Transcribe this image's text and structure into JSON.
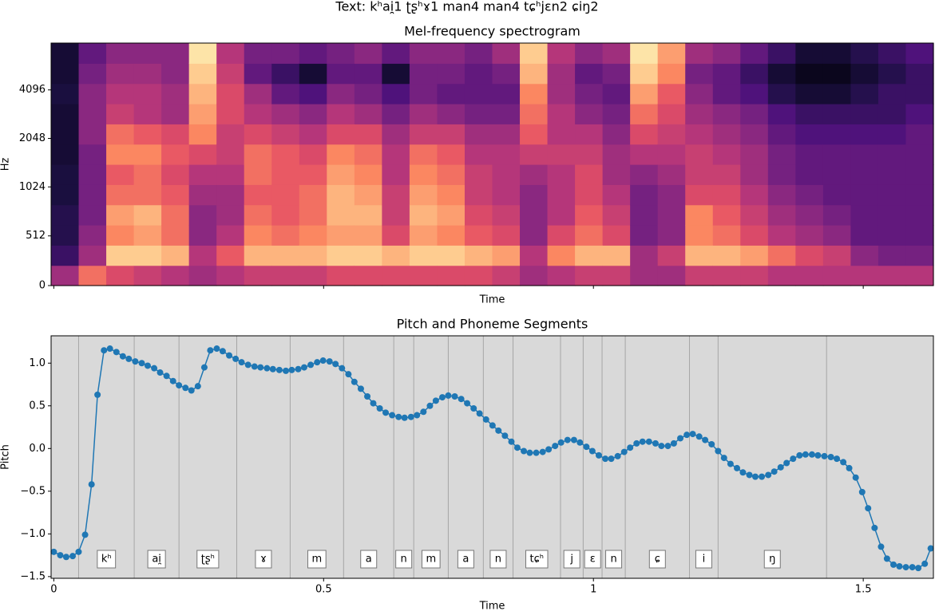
{
  "title": "Text: kʰai̯1 ʈʂʰɤ1 man4 man4 tɕʰjɛn2 ɕiŋ2",
  "chart_data": [
    {
      "type": "heatmap",
      "title": "Mel-frequency spectrogram",
      "xlabel": "Time",
      "ylabel": "Hz",
      "colormap": "magma",
      "yscale": "symlog",
      "linthresh": 1000,
      "base": 2,
      "xlim": [
        -0.005,
        1.63
      ],
      "xticks": [
        0,
        0.5,
        1,
        1.5
      ],
      "show_xticklabels": false,
      "ylim": [
        0,
        8000
      ],
      "yticks": [
        0,
        512,
        1024,
        2048,
        4096
      ],
      "values": [
        [
          0.45,
          0.2,
          0.15,
          0.15,
          0.12,
          0.12,
          0.1,
          0.1,
          0.1,
          0.12,
          0.1,
          0.1
        ],
        [
          0.7,
          0.45,
          0.4,
          0.35,
          0.35,
          0.35,
          0.35,
          0.4,
          0.4,
          0.4,
          0.35,
          0.3
        ],
        [
          0.6,
          0.9,
          0.75,
          0.8,
          0.7,
          0.65,
          0.75,
          0.7,
          0.55,
          0.5,
          0.45,
          0.4
        ],
        [
          0.55,
          0.9,
          0.8,
          0.85,
          0.7,
          0.7,
          0.75,
          0.65,
          0.5,
          0.5,
          0.45,
          0.4
        ],
        [
          0.5,
          0.85,
          0.7,
          0.7,
          0.65,
          0.6,
          0.65,
          0.6,
          0.45,
          0.45,
          0.4,
          0.4
        ],
        [
          0.45,
          0.5,
          0.4,
          0.4,
          0.45,
          0.5,
          0.6,
          0.75,
          0.8,
          0.85,
          0.9,
          0.95
        ],
        [
          0.5,
          0.65,
          0.5,
          0.45,
          0.45,
          0.5,
          0.55,
          0.55,
          0.6,
          0.6,
          0.55,
          0.5
        ],
        [
          0.55,
          0.85,
          0.75,
          0.7,
          0.65,
          0.7,
          0.7,
          0.6,
          0.5,
          0.45,
          0.3,
          0.35
        ],
        [
          0.55,
          0.85,
          0.7,
          0.65,
          0.65,
          0.65,
          0.65,
          0.55,
          0.45,
          0.3,
          0.2,
          0.35
        ],
        [
          0.55,
          0.85,
          0.75,
          0.7,
          0.7,
          0.65,
          0.6,
          0.5,
          0.4,
          0.25,
          0.1,
          0.3
        ],
        [
          0.6,
          0.9,
          0.8,
          0.85,
          0.85,
          0.8,
          0.75,
          0.6,
          0.5,
          0.4,
          0.3,
          0.35
        ],
        [
          0.6,
          0.9,
          0.8,
          0.85,
          0.8,
          0.75,
          0.7,
          0.6,
          0.45,
          0.35,
          0.3,
          0.4
        ],
        [
          0.6,
          0.85,
          0.6,
          0.55,
          0.55,
          0.5,
          0.5,
          0.45,
          0.35,
          0.25,
          0.1,
          0.3
        ],
        [
          0.6,
          0.9,
          0.8,
          0.85,
          0.8,
          0.75,
          0.7,
          0.55,
          0.45,
          0.35,
          0.35,
          0.4
        ],
        [
          0.6,
          0.9,
          0.75,
          0.8,
          0.75,
          0.7,
          0.65,
          0.55,
          0.4,
          0.3,
          0.35,
          0.4
        ],
        [
          0.6,
          0.85,
          0.65,
          0.6,
          0.55,
          0.55,
          0.5,
          0.45,
          0.35,
          0.3,
          0.3,
          0.35
        ],
        [
          0.55,
          0.8,
          0.6,
          0.55,
          0.5,
          0.5,
          0.5,
          0.45,
          0.35,
          0.3,
          0.35,
          0.45
        ],
        [
          0.45,
          0.5,
          0.4,
          0.4,
          0.4,
          0.45,
          0.55,
          0.65,
          0.7,
          0.75,
          0.85,
          0.9
        ],
        [
          0.5,
          0.75,
          0.6,
          0.5,
          0.5,
          0.5,
          0.55,
          0.5,
          0.5,
          0.45,
          0.45,
          0.5
        ],
        [
          0.55,
          0.85,
          0.7,
          0.65,
          0.6,
          0.6,
          0.55,
          0.5,
          0.4,
          0.35,
          0.3,
          0.4
        ],
        [
          0.55,
          0.85,
          0.6,
          0.55,
          0.5,
          0.45,
          0.45,
          0.4,
          0.35,
          0.3,
          0.35,
          0.45
        ],
        [
          0.45,
          0.45,
          0.35,
          0.35,
          0.35,
          0.4,
          0.5,
          0.6,
          0.7,
          0.8,
          0.9,
          0.95
        ],
        [
          0.45,
          0.55,
          0.4,
          0.4,
          0.4,
          0.45,
          0.5,
          0.55,
          0.6,
          0.65,
          0.75,
          0.8
        ],
        [
          0.55,
          0.85,
          0.75,
          0.75,
          0.6,
          0.55,
          0.55,
          0.5,
          0.45,
          0.4,
          0.35,
          0.45
        ],
        [
          0.55,
          0.85,
          0.7,
          0.65,
          0.6,
          0.55,
          0.5,
          0.45,
          0.4,
          0.3,
          0.3,
          0.4
        ],
        [
          0.55,
          0.8,
          0.6,
          0.55,
          0.5,
          0.45,
          0.45,
          0.4,
          0.35,
          0.25,
          0.2,
          0.3
        ],
        [
          0.5,
          0.7,
          0.5,
          0.45,
          0.4,
          0.35,
          0.35,
          0.3,
          0.25,
          0.15,
          0.1,
          0.2
        ],
        [
          0.5,
          0.6,
          0.45,
          0.4,
          0.35,
          0.3,
          0.3,
          0.25,
          0.2,
          0.1,
          0.05,
          0.1
        ],
        [
          0.5,
          0.55,
          0.4,
          0.35,
          0.3,
          0.3,
          0.3,
          0.25,
          0.2,
          0.1,
          0.05,
          0.1
        ],
        [
          0.5,
          0.4,
          0.3,
          0.3,
          0.3,
          0.3,
          0.3,
          0.25,
          0.2,
          0.15,
          0.1,
          0.15
        ],
        [
          0.5,
          0.35,
          0.3,
          0.3,
          0.3,
          0.3,
          0.3,
          0.25,
          0.2,
          0.2,
          0.15,
          0.2
        ],
        [
          0.5,
          0.35,
          0.3,
          0.3,
          0.3,
          0.3,
          0.3,
          0.3,
          0.25,
          0.2,
          0.2,
          0.25
        ]
      ]
    },
    {
      "type": "line",
      "title": "Pitch and Phoneme Segments",
      "xlabel": "Time",
      "ylabel": "Pitch",
      "color": "#1f77b4",
      "background": "#d9d9d9",
      "xlim": [
        -0.005,
        1.63
      ],
      "xticks": [
        0,
        0.5,
        1,
        1.5
      ],
      "ylim": [
        -1.52,
        1.32
      ],
      "yticks": [
        {
          "value": -1.5,
          "label": "−1.5"
        },
        {
          "value": -1,
          "label": "−1.0"
        },
        {
          "value": -0.5,
          "label": "−0.5"
        },
        {
          "value": 0,
          "label": "0.0"
        },
        0.5,
        {
          "value": 1,
          "label": "1.0"
        }
      ],
      "x": [
        0,
        0.012,
        0.023,
        0.035,
        0.046,
        0.058,
        0.07,
        0.081,
        0.093,
        0.104,
        0.116,
        0.128,
        0.139,
        0.151,
        0.163,
        0.174,
        0.186,
        0.197,
        0.209,
        0.221,
        0.232,
        0.244,
        0.255,
        0.267,
        0.279,
        0.29,
        0.302,
        0.313,
        0.325,
        0.337,
        0.348,
        0.36,
        0.372,
        0.383,
        0.395,
        0.406,
        0.418,
        0.43,
        0.441,
        0.453,
        0.464,
        0.476,
        0.488,
        0.499,
        0.511,
        0.522,
        0.534,
        0.546,
        0.557,
        0.569,
        0.581,
        0.592,
        0.604,
        0.615,
        0.627,
        0.639,
        0.65,
        0.662,
        0.673,
        0.685,
        0.697,
        0.708,
        0.72,
        0.731,
        0.743,
        0.755,
        0.766,
        0.778,
        0.789,
        0.801,
        0.813,
        0.824,
        0.836,
        0.848,
        0.859,
        0.871,
        0.882,
        0.894,
        0.906,
        0.917,
        0.929,
        0.94,
        0.952,
        0.964,
        0.975,
        0.987,
        0.998,
        1.01,
        1.022,
        1.033,
        1.045,
        1.057,
        1.068,
        1.08,
        1.091,
        1.103,
        1.115,
        1.126,
        1.138,
        1.149,
        1.161,
        1.173,
        1.184,
        1.196,
        1.207,
        1.219,
        1.231,
        1.242,
        1.254,
        1.266,
        1.277,
        1.289,
        1.3,
        1.312,
        1.324,
        1.335,
        1.347,
        1.358,
        1.37,
        1.382,
        1.393,
        1.405,
        1.416,
        1.428,
        1.44,
        1.451,
        1.463,
        1.474,
        1.486,
        1.498,
        1.509,
        1.521,
        1.533,
        1.544,
        1.556,
        1.567,
        1.579,
        1.591,
        1.602,
        1.614,
        1.625
      ],
      "values": [
        -1.21,
        -1.25,
        -1.27,
        -1.26,
        -1.21,
        -1.01,
        -0.42,
        0.63,
        1.15,
        1.17,
        1.13,
        1.08,
        1.05,
        1.02,
        1.0,
        0.97,
        0.94,
        0.89,
        0.85,
        0.79,
        0.74,
        0.71,
        0.68,
        0.73,
        0.95,
        1.15,
        1.17,
        1.14,
        1.09,
        1.05,
        1.01,
        0.98,
        0.96,
        0.95,
        0.94,
        0.93,
        0.92,
        0.91,
        0.92,
        0.93,
        0.95,
        0.98,
        1.01,
        1.03,
        1.02,
        0.99,
        0.94,
        0.87,
        0.78,
        0.7,
        0.61,
        0.53,
        0.47,
        0.42,
        0.39,
        0.37,
        0.36,
        0.37,
        0.39,
        0.43,
        0.5,
        0.56,
        0.6,
        0.62,
        0.61,
        0.58,
        0.53,
        0.47,
        0.41,
        0.34,
        0.27,
        0.21,
        0.15,
        0.08,
        0.01,
        -0.03,
        -0.05,
        -0.05,
        -0.04,
        -0.01,
        0.03,
        0.07,
        0.1,
        0.1,
        0.07,
        0.02,
        -0.03,
        -0.08,
        -0.12,
        -0.12,
        -0.09,
        -0.04,
        0.01,
        0.06,
        0.08,
        0.08,
        0.06,
        0.03,
        0.03,
        0.06,
        0.12,
        0.16,
        0.17,
        0.14,
        0.1,
        0.05,
        -0.03,
        -0.11,
        -0.18,
        -0.23,
        -0.28,
        -0.31,
        -0.33,
        -0.33,
        -0.31,
        -0.27,
        -0.22,
        -0.17,
        -0.12,
        -0.08,
        -0.07,
        -0.07,
        -0.08,
        -0.09,
        -0.1,
        -0.12,
        -0.16,
        -0.23,
        -0.34,
        -0.51,
        -0.7,
        -0.93,
        -1.15,
        -1.29,
        -1.36,
        -1.38,
        -1.39,
        -1.39,
        -1.4,
        -1.35,
        -1.17
      ],
      "boundaries": [
        0.046,
        0.149,
        0.232,
        0.339,
        0.438,
        0.537,
        0.63,
        0.667,
        0.731,
        0.796,
        0.851,
        0.939,
        0.981,
        1.016,
        1.059,
        1.178,
        1.231,
        1.432
      ],
      "phonemes": [
        "kʰ",
        "ai̯",
        "ʈʂʰ",
        "ɤ",
        "m",
        "a",
        "n",
        "m",
        "a",
        "n",
        "tɕʰ",
        "j",
        "ɛ",
        "n",
        "ɕ",
        "i",
        "ŋ"
      ]
    }
  ]
}
